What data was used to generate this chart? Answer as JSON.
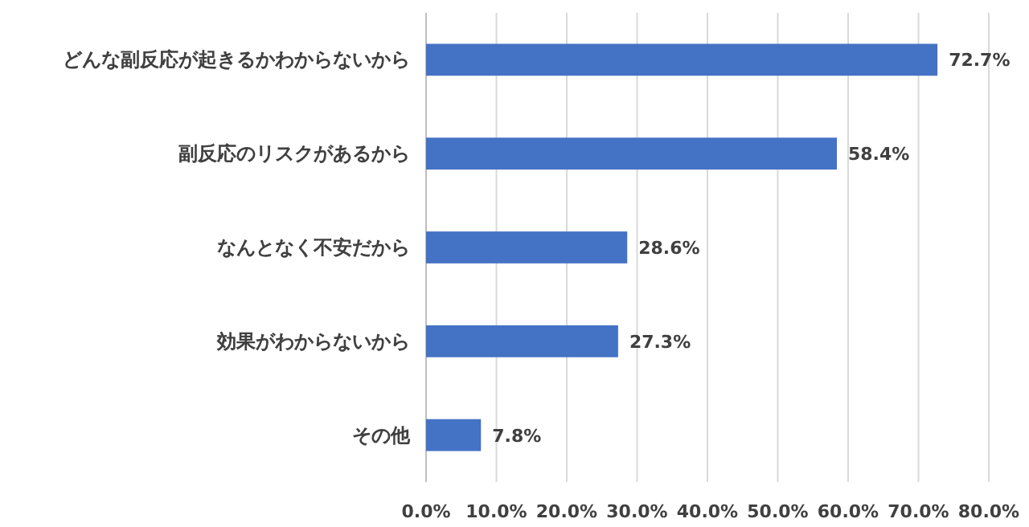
{
  "chart_data": {
    "type": "bar",
    "orientation": "horizontal",
    "categories": [
      "どんな副反応が起きるかわからないから",
      "副反応のリスクがあるから",
      "なんとなく不安だから",
      "効果がわからないから",
      "その他"
    ],
    "values": [
      72.7,
      58.4,
      28.6,
      27.3,
      7.8
    ],
    "value_labels": [
      "72.7%",
      "58.4%",
      "28.6%",
      "27.3%",
      "7.8%"
    ],
    "color": "#4472c4",
    "xlim": [
      0,
      80
    ],
    "xticks": [
      {
        "value": 0,
        "label": "0.0%"
      },
      {
        "value": 10,
        "label": "10.0%"
      },
      {
        "value": 20,
        "label": "20.0%"
      },
      {
        "value": 30,
        "label": "30.0%"
      },
      {
        "value": 40,
        "label": "40.0%"
      },
      {
        "value": 50,
        "label": "50.0%"
      },
      {
        "value": 60,
        "label": "60.0%"
      },
      {
        "value": 70,
        "label": "70.0%"
      },
      {
        "value": 80,
        "label": "80.0%"
      }
    ],
    "grid": "x"
  }
}
